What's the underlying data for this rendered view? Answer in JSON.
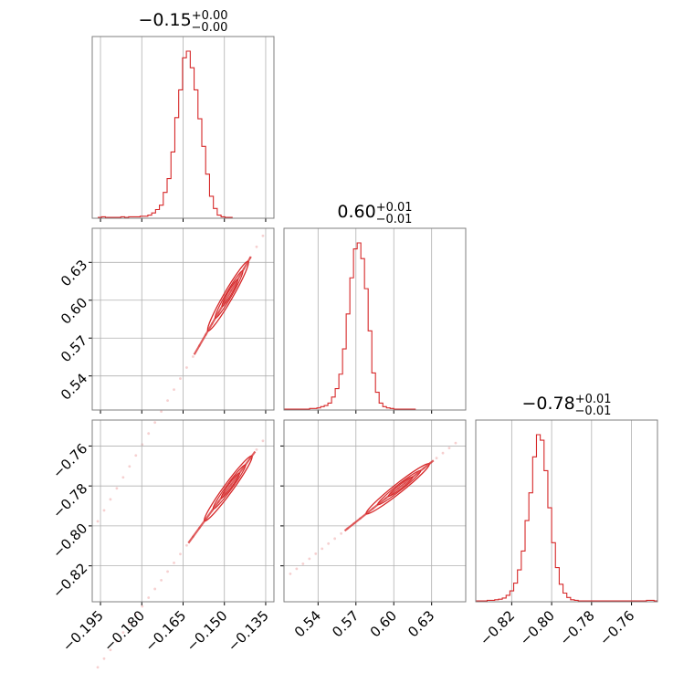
{
  "chart_data": {
    "type": "corner",
    "color": "#d62728",
    "grid": true,
    "params": [
      {
        "title_main": "−0.15",
        "title_sup": "+0.00",
        "title_sub": "−0.00",
        "range": [
          -0.198,
          -0.132
        ],
        "ticks": [
          -0.195,
          -0.18,
          -0.165,
          -0.15,
          -0.135
        ],
        "ticklabels": [
          "−0.195",
          "−0.180",
          "−0.165",
          "−0.150",
          "−0.135"
        ]
      },
      {
        "title_main": "0.60",
        "title_sup": "+0.01",
        "title_sub": "−0.01",
        "range": [
          0.513,
          0.657
        ],
        "ticks": [
          0.54,
          0.57,
          0.6,
          0.63
        ],
        "ticklabels": [
          "0.54",
          "0.57",
          "0.60",
          "0.63"
        ]
      },
      {
        "title_main": "−0.78",
        "title_sup": "+0.01",
        "title_sub": "−0.01",
        "range": [
          -0.838,
          -0.747
        ],
        "ticks": [
          -0.82,
          -0.8,
          -0.78,
          -0.76
        ],
        "ticklabels": [
          "−0.82",
          "−0.80",
          "−0.78",
          "−0.76"
        ]
      }
    ],
    "hist1d": [
      {
        "edges_start": -0.196,
        "bin_width": 0.0014,
        "counts": [
          0,
          1,
          0,
          0,
          0,
          0,
          1,
          0,
          1,
          1,
          1,
          2,
          2,
          4,
          8,
          14,
          22,
          45,
          70,
          118,
          180,
          230,
          288,
          300,
          270,
          230,
          178,
          128,
          78,
          38,
          16,
          4,
          1,
          0,
          0
        ]
      },
      {
        "edges_start": 0.513,
        "bin_width": 0.0029,
        "counts": [
          0,
          0,
          0,
          0,
          0,
          0,
          0,
          1,
          1,
          2,
          4,
          6,
          10,
          20,
          34,
          58,
          100,
          158,
          218,
          266,
          276,
          250,
          200,
          130,
          60,
          28,
          10,
          4,
          2,
          1,
          0,
          0,
          0,
          0,
          0,
          0
        ]
      },
      {
        "edges_start": -0.838,
        "bin_width": 0.0019,
        "counts": [
          0,
          0,
          0,
          1,
          1,
          2,
          3,
          5,
          10,
          18,
          32,
          56,
          90,
          145,
          195,
          260,
          300,
          290,
          235,
          168,
          105,
          60,
          30,
          14,
          6,
          2,
          1,
          0,
          0,
          0,
          0,
          0,
          0,
          0,
          0,
          0,
          0,
          0,
          0,
          0,
          0,
          0,
          0,
          0,
          0,
          1,
          1,
          0
        ]
      }
    ],
    "pairs": [
      {
        "row": 1,
        "col": 0,
        "slope": 3.77,
        "ref": [
          -0.149,
          0.602
        ],
        "extent": [
          -0.196,
          -0.136
        ]
      },
      {
        "row": 2,
        "col": 0,
        "slope": 1.89,
        "ref": [
          -0.149,
          -0.782
        ],
        "extent": [
          -0.196,
          -0.136
        ]
      },
      {
        "row": 2,
        "col": 1,
        "slope": 0.5,
        "ref": [
          0.602,
          -0.782
        ],
        "extent": [
          0.518,
          0.649
        ]
      }
    ]
  }
}
